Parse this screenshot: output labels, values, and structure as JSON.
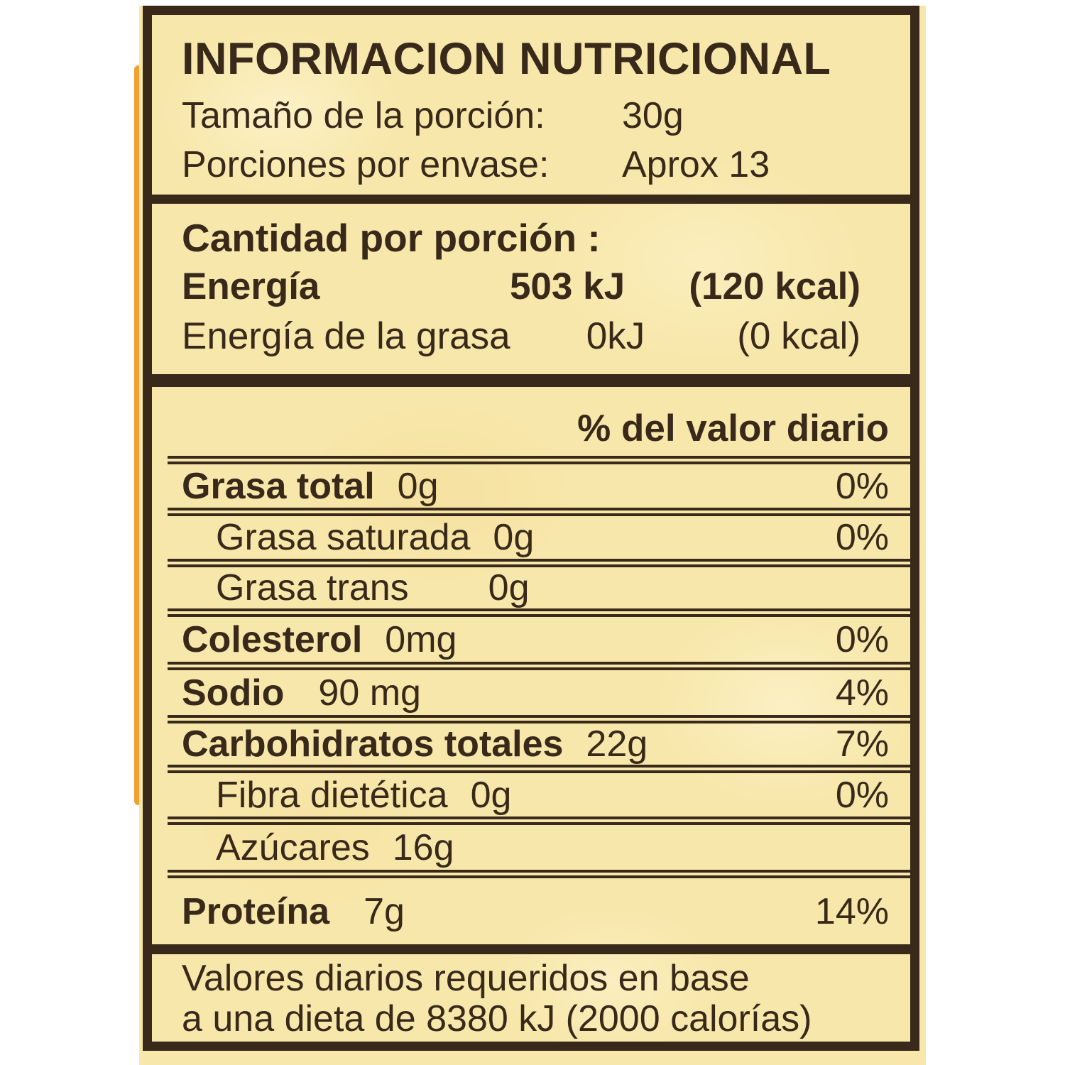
{
  "header": {
    "title": "INFORMACION NUTRICIONAL",
    "serving_size_label": "Tamaño de la porción:",
    "serving_size_value": "30g",
    "servings_label": "Porciones por envase:",
    "servings_value": "Aprox 13"
  },
  "energy": {
    "heading": "Cantidad por porción :",
    "rows": [
      {
        "name": "Energía",
        "kj": "503 kJ",
        "kcal": "(120 kcal)"
      },
      {
        "name": "Energía de la grasa",
        "kj": "0kJ",
        "kcal": "(0 kcal)"
      }
    ]
  },
  "table": {
    "dv_header": "% del valor diario",
    "rows": {
      "grasa_total": {
        "name": "Grasa total",
        "value": "0g",
        "dv": "0%"
      },
      "grasa_saturada": {
        "name": "Grasa saturada",
        "value": "0g",
        "dv": "0%"
      },
      "grasa_trans": {
        "name": "Grasa trans",
        "value": "0g",
        "dv": ""
      },
      "colesterol": {
        "name": "Colesterol",
        "value": "0mg",
        "dv": "0%"
      },
      "sodio": {
        "name": "Sodio",
        "value": "90 mg",
        "dv": "4%"
      },
      "carbohidratos": {
        "name": "Carbohidratos totales",
        "value": "22g",
        "dv": "7%"
      },
      "fibra": {
        "name": "Fibra dietética",
        "value": "0g",
        "dv": "0%"
      },
      "azucares": {
        "name": "Azúcares",
        "value": "16g",
        "dv": ""
      },
      "proteina": {
        "name": "Proteína",
        "value": "7g",
        "dv": "14%"
      }
    }
  },
  "footer": {
    "line1": "Valores diarios requeridos en base",
    "line2": "a una dieta de 8380 kJ (2000 calorías)"
  },
  "colors": {
    "label_background": "#f8e7aa",
    "ink": "#38291a",
    "package_orange": "#f59f2e",
    "photo_background": "#ffffff"
  }
}
